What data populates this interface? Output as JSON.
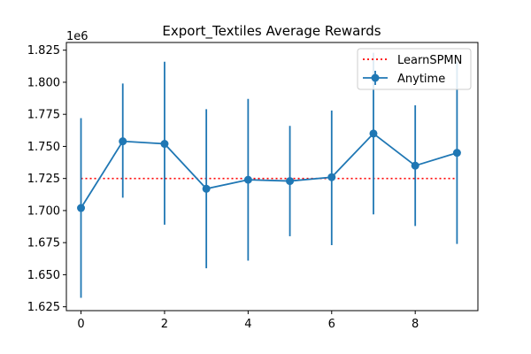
{
  "chart_data": {
    "type": "line",
    "title": "Export_Textiles Average Rewards",
    "xlabel": "",
    "ylabel": "",
    "y_offset_label": "1e6",
    "xlim": [
      -0.35,
      9.5
    ],
    "ylim": [
      1.622,
      1.831
    ],
    "x_ticks": [
      0,
      2,
      4,
      6,
      8
    ],
    "y_ticks": [
      1.625,
      1.65,
      1.675,
      1.7,
      1.725,
      1.75,
      1.775,
      1.8,
      1.825
    ],
    "y_tick_labels": [
      "1.625",
      "1.650",
      "1.675",
      "1.700",
      "1.725",
      "1.750",
      "1.775",
      "1.800",
      "1.825"
    ],
    "grid": false,
    "legend_position": "top-right",
    "series": [
      {
        "name": "LearnSPMN",
        "style": "dotted",
        "color": "#ff0000",
        "x": [
          0,
          9
        ],
        "values": [
          1.725,
          1.725
        ]
      },
      {
        "name": "Anytime",
        "style": "line-with-markers-and-errorbars",
        "color": "#1f77b4",
        "x": [
          0,
          1,
          2,
          3,
          4,
          5,
          6,
          7,
          8,
          9
        ],
        "values": [
          1.702,
          1.754,
          1.752,
          1.717,
          1.724,
          1.723,
          1.726,
          1.76,
          1.735,
          1.745
        ],
        "error_low": [
          1.632,
          1.71,
          1.689,
          1.655,
          1.661,
          1.68,
          1.673,
          1.697,
          1.688,
          1.674
        ],
        "error_high": [
          1.772,
          1.799,
          1.816,
          1.779,
          1.787,
          1.766,
          1.778,
          1.823,
          1.782,
          1.816
        ]
      }
    ]
  }
}
